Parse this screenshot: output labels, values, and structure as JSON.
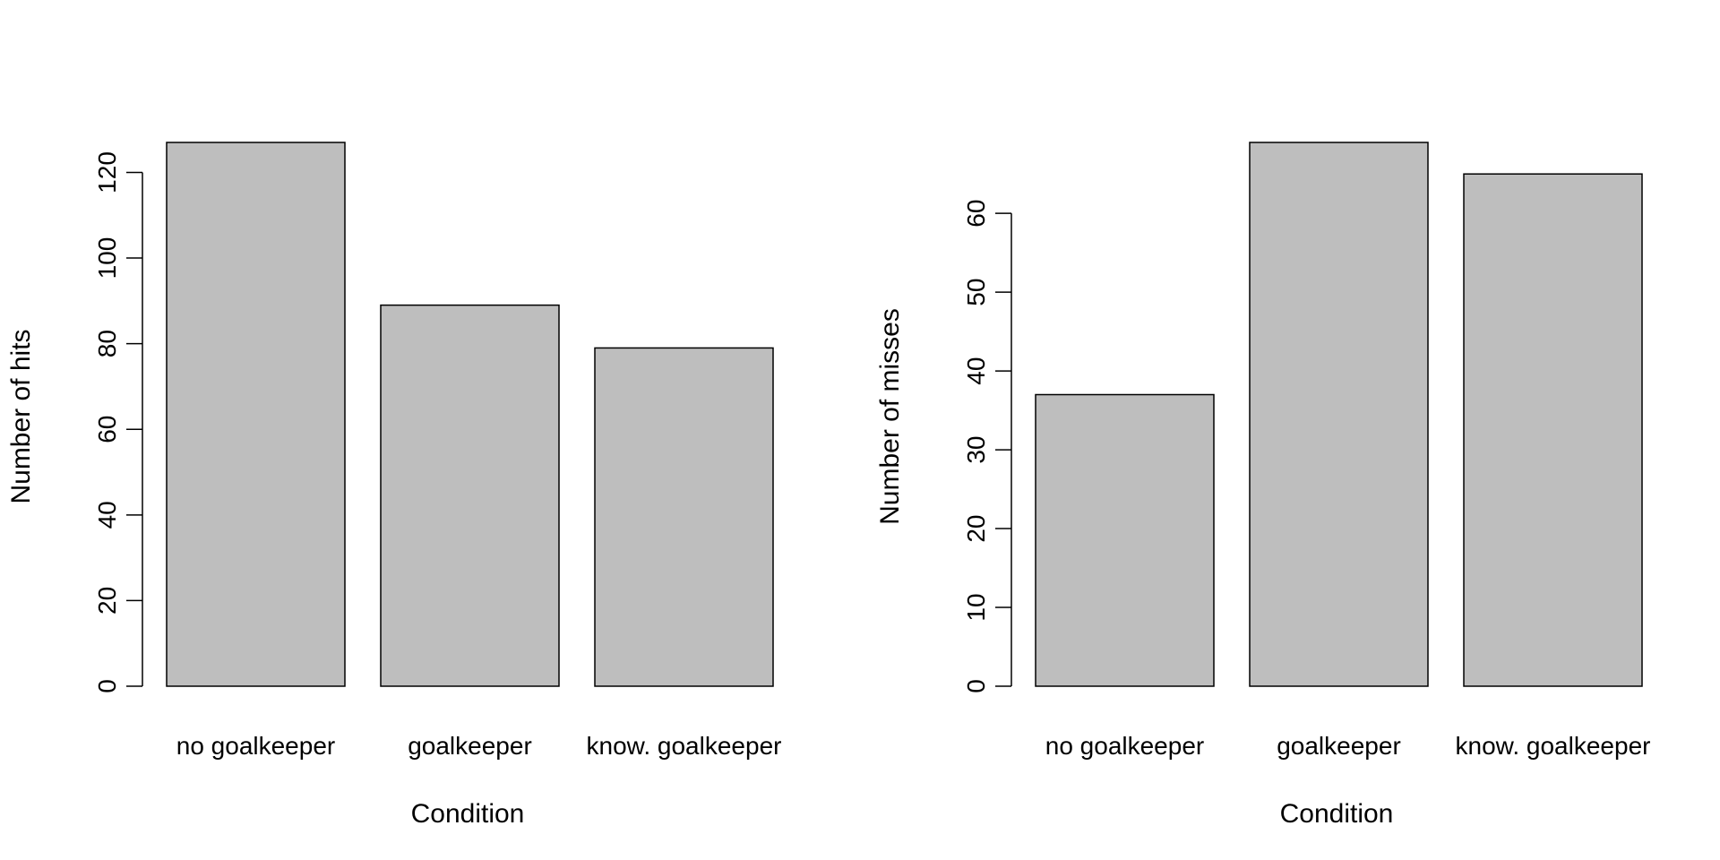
{
  "chart_data": [
    {
      "type": "bar",
      "categories": [
        "no goalkeeper",
        "goalkeeper",
        "know. goalkeeper"
      ],
      "values": [
        127,
        89,
        79
      ],
      "title": "",
      "xlabel": "Condition",
      "ylabel": "Number of hits",
      "yticks": [
        0,
        20,
        40,
        60,
        80,
        100,
        120
      ],
      "ylim": [
        0,
        127
      ],
      "grid": false,
      "bar_color": "#bebebe",
      "edge_color": "#000000"
    },
    {
      "type": "bar",
      "categories": [
        "no goalkeeper",
        "goalkeeper",
        "know. goalkeeper"
      ],
      "values": [
        37,
        69,
        65
      ],
      "title": "",
      "xlabel": "Condition",
      "ylabel": "Number of misses",
      "yticks": [
        0,
        10,
        20,
        30,
        40,
        50,
        60
      ],
      "ylim": [
        0,
        69
      ],
      "grid": false,
      "bar_color": "#bebebe",
      "edge_color": "#000000"
    }
  ]
}
